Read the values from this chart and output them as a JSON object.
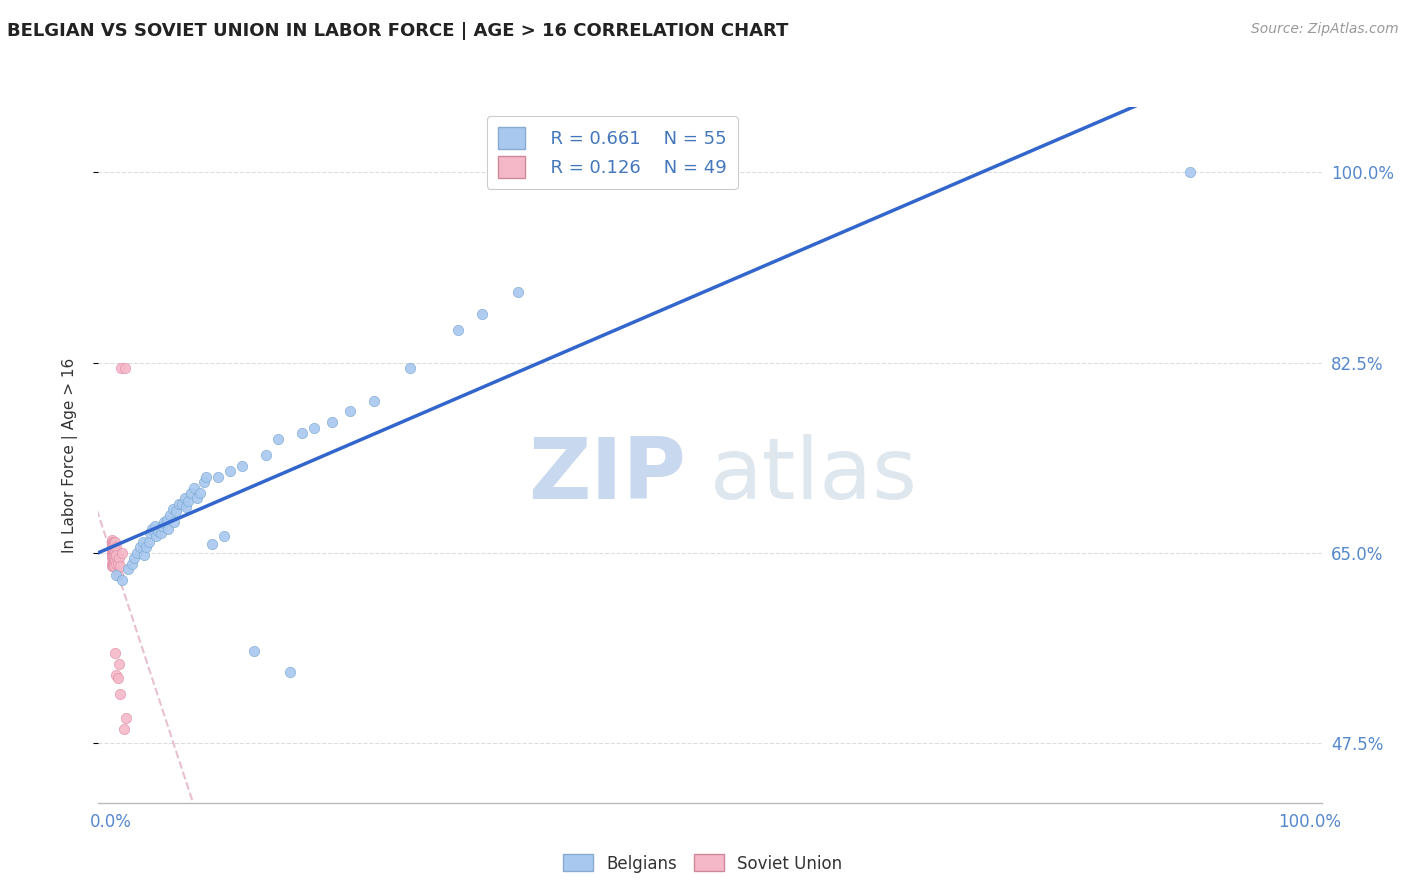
{
  "title": "BELGIAN VS SOVIET UNION IN LABOR FORCE | AGE > 16 CORRELATION CHART",
  "source": "Source: ZipAtlas.com",
  "ylabel": "In Labor Force | Age > 16",
  "ytick_labels": [
    "47.5%",
    "65.0%",
    "82.5%",
    "100.0%"
  ],
  "ytick_values": [
    0.475,
    0.65,
    0.825,
    1.0
  ],
  "legend_r1": "R = 0.661",
  "legend_n1": "N = 55",
  "legend_r2": "R = 0.126",
  "legend_n2": "N = 49",
  "watermark_zip": "ZIP",
  "watermark_atlas": "atlas",
  "blue_color": "#a8c8f0",
  "pink_color": "#f5b8c8",
  "line_color": "#3366cc",
  "soviet_line_color": "#ddbbcc",
  "belgians_x": [
    0.005,
    0.01,
    0.015,
    0.018,
    0.02,
    0.022,
    0.025,
    0.027,
    0.028,
    0.03,
    0.032,
    0.033,
    0.035,
    0.037,
    0.038,
    0.04,
    0.042,
    0.043,
    0.045,
    0.047,
    0.048,
    0.05,
    0.052,
    0.053,
    0.055,
    0.057,
    0.06,
    0.062,
    0.063,
    0.065,
    0.067,
    0.07,
    0.072,
    0.075,
    0.078,
    0.08,
    0.085,
    0.09,
    0.095,
    0.1,
    0.11,
    0.12,
    0.13,
    0.14,
    0.15,
    0.16,
    0.17,
    0.185,
    0.2,
    0.22,
    0.25,
    0.29,
    0.31,
    0.34,
    0.9
  ],
  "belgians_y": [
    0.63,
    0.625,
    0.635,
    0.64,
    0.645,
    0.65,
    0.655,
    0.66,
    0.648,
    0.655,
    0.66,
    0.668,
    0.672,
    0.675,
    0.665,
    0.67,
    0.668,
    0.675,
    0.678,
    0.68,
    0.672,
    0.685,
    0.69,
    0.678,
    0.688,
    0.695,
    0.695,
    0.7,
    0.692,
    0.698,
    0.705,
    0.71,
    0.7,
    0.705,
    0.715,
    0.72,
    0.658,
    0.72,
    0.665,
    0.725,
    0.73,
    0.56,
    0.74,
    0.755,
    0.54,
    0.76,
    0.765,
    0.77,
    0.78,
    0.79,
    0.82,
    0.855,
    0.87,
    0.89,
    1.0
  ],
  "soviet_x": [
    0.001,
    0.001,
    0.001,
    0.001,
    0.001,
    0.001,
    0.001,
    0.001,
    0.001,
    0.001,
    0.002,
    0.002,
    0.002,
    0.002,
    0.002,
    0.002,
    0.002,
    0.002,
    0.002,
    0.002,
    0.003,
    0.003,
    0.003,
    0.003,
    0.003,
    0.003,
    0.003,
    0.004,
    0.004,
    0.004,
    0.004,
    0.004,
    0.005,
    0.005,
    0.005,
    0.005,
    0.005,
    0.006,
    0.006,
    0.006,
    0.007,
    0.007,
    0.008,
    0.008,
    0.009,
    0.01,
    0.011,
    0.012,
    0.013
  ],
  "soviet_y": [
    0.65,
    0.655,
    0.66,
    0.648,
    0.645,
    0.652,
    0.64,
    0.638,
    0.662,
    0.658,
    0.65,
    0.655,
    0.642,
    0.66,
    0.648,
    0.64,
    0.638,
    0.645,
    0.652,
    0.658,
    0.645,
    0.65,
    0.655,
    0.64,
    0.638,
    0.66,
    0.648,
    0.642,
    0.65,
    0.652,
    0.558,
    0.66,
    0.648,
    0.655,
    0.64,
    0.538,
    0.648,
    0.535,
    0.63,
    0.64,
    0.548,
    0.645,
    0.52,
    0.638,
    0.82,
    0.65,
    0.488,
    0.82,
    0.498
  ],
  "xlim": [
    -0.01,
    1.01
  ],
  "ylim": [
    0.42,
    1.06
  ],
  "xtick_positions": [
    0.0,
    0.1,
    0.2,
    0.3,
    0.4,
    0.5,
    0.6,
    0.7,
    0.8,
    0.9,
    1.0
  ]
}
